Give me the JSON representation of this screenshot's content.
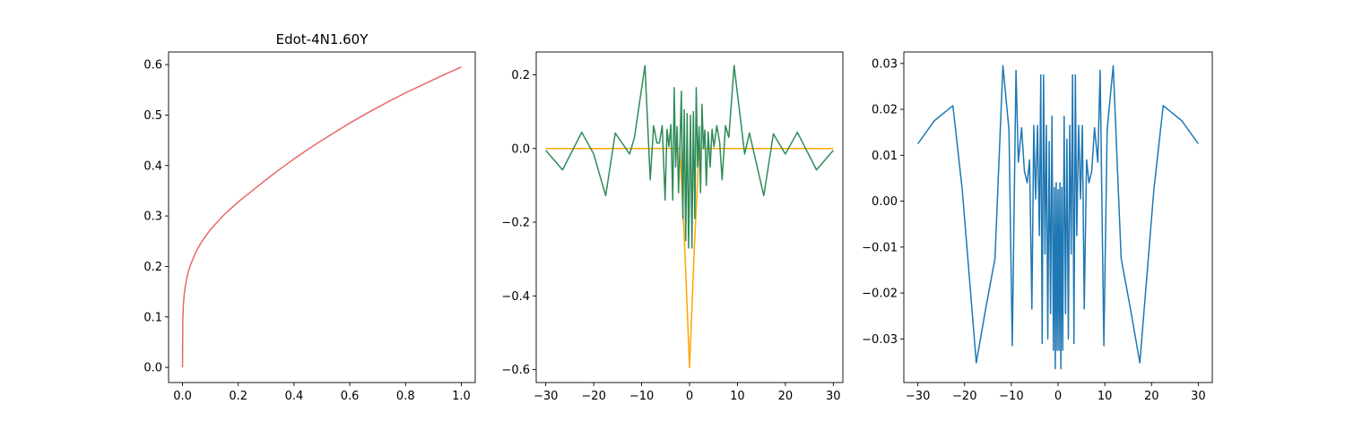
{
  "chart_data": [
    {
      "type": "line",
      "title": "Edot-4N1.60Y",
      "xlim": [
        -0.05,
        1.05
      ],
      "ylim": [
        -0.03,
        0.625
      ],
      "xticks": [
        0.0,
        0.2,
        0.4,
        0.6,
        0.8,
        1.0
      ],
      "xtick_labels": [
        "0.0",
        "0.2",
        "0.4",
        "0.6",
        "0.8",
        "1.0"
      ],
      "yticks": [
        0.0,
        0.1,
        0.2,
        0.3,
        0.4,
        0.5,
        0.6
      ],
      "ytick_labels": [
        "0.0",
        "0.1",
        "0.2",
        "0.3",
        "0.4",
        "0.5",
        "0.6"
      ],
      "grid": false,
      "series": [
        {
          "color": "#e8686a",
          "x": [
            0,
            0.001,
            0.003,
            0.006,
            0.01,
            0.02,
            0.03,
            0.05,
            0.07,
            0.1,
            0.15,
            0.2,
            0.25,
            0.3,
            0.35,
            0.4,
            0.45,
            0.5,
            0.55,
            0.6,
            0.65,
            0.7,
            0.75,
            0.8,
            0.85,
            0.9,
            0.95,
            1.0
          ],
          "y": [
            0,
            0.095,
            0.124,
            0.144,
            0.161,
            0.188,
            0.205,
            0.231,
            0.25,
            0.273,
            0.303,
            0.328,
            0.35,
            0.372,
            0.393,
            0.413,
            0.432,
            0.45,
            0.467,
            0.484,
            0.5,
            0.515,
            0.53,
            0.544,
            0.557,
            0.57,
            0.583,
            0.595
          ]
        }
      ]
    },
    {
      "type": "line",
      "xlim": [
        -32,
        32
      ],
      "ylim": [
        -0.635,
        0.262
      ],
      "xticks": [
        -30,
        -20,
        -10,
        0,
        10,
        20,
        30
      ],
      "xtick_labels": [
        "−30",
        "−20",
        "−10",
        "0",
        "10",
        "20",
        "30"
      ],
      "yticks": [
        0.2,
        0.0,
        -0.2,
        -0.4,
        -0.6
      ],
      "ytick_labels": [
        "0.2",
        "0.0",
        "−0.2",
        "−0.4",
        "−0.6"
      ],
      "grid": false,
      "series": [
        {
          "color": "#ffa500",
          "x": [
            -30,
            -2,
            -1,
            0,
            1,
            2,
            30
          ],
          "y": [
            0,
            0,
            -0.27,
            -0.595,
            -0.27,
            0,
            0
          ]
        },
        {
          "color": "#2e8b57",
          "x": [
            -30,
            -26.5,
            -22.5,
            -20,
            -17.5,
            -15.5,
            -12.5,
            -11.5,
            -9.3,
            -8.2,
            -7.5,
            -6.8,
            -6.3,
            -5.7,
            -5.1,
            -4.7,
            -4.3,
            -3.9,
            -3.5,
            -3.2,
            -2.9,
            -2.6,
            -2.3,
            -2.0,
            -1.7,
            -1.4,
            -1.1,
            -0.8,
            -0.5,
            -0.2,
            0.2,
            0.5,
            0.8,
            1.1,
            1.4,
            1.7,
            2.0,
            2.3,
            2.6,
            2.9,
            3.2,
            3.5,
            3.9,
            4.3,
            4.7,
            5.1,
            5.7,
            6.3,
            6.8,
            7.5,
            8.2,
            9.3,
            11.5,
            12.5,
            15.5,
            17.5,
            20,
            22.5,
            26.5,
            30
          ],
          "y": [
            -0.005,
            -0.058,
            0.044,
            -0.015,
            -0.128,
            0.042,
            -0.015,
            0.03,
            0.225,
            -0.085,
            0.062,
            0.015,
            0.015,
            0.062,
            -0.14,
            0.052,
            0.005,
            0.065,
            -0.14,
            0.165,
            -0.05,
            0.06,
            -0.12,
            0.01,
            0.155,
            -0.19,
            0.105,
            -0.25,
            0.095,
            -0.27,
            0.09,
            -0.27,
            0.1,
            -0.19,
            0.165,
            -0.05,
            0.06,
            -0.12,
            0.12,
            0.0,
            0.05,
            -0.1,
            0.045,
            -0.05,
            0.052,
            0.005,
            0.062,
            0.015,
            -0.085,
            0.062,
            0.03,
            0.225,
            -0.015,
            0.042,
            -0.128,
            0.04,
            -0.015,
            0.044,
            -0.058,
            -0.005
          ]
        }
      ]
    },
    {
      "type": "line",
      "xlim": [
        -33,
        33
      ],
      "ylim": [
        -0.0395,
        0.0325
      ],
      "xticks": [
        -30,
        -20,
        -10,
        0,
        10,
        20,
        30
      ],
      "xtick_labels": [
        "−30",
        "−20",
        "−10",
        "0",
        "10",
        "20",
        "30"
      ],
      "yticks": [
        0.03,
        0.02,
        0.01,
        0.0,
        -0.01,
        -0.02,
        -0.03
      ],
      "ytick_labels": [
        "0.03",
        "0.02",
        "0.01",
        "0.00",
        "−0.01",
        "−0.02",
        "−0.03"
      ],
      "grid": false,
      "series": [
        {
          "color": "#1f77b4",
          "x": [
            -30,
            -26.5,
            -22.5,
            -20.5,
            -17.5,
            -15.5,
            -13.5,
            -11.8,
            -10.5,
            -9.8,
            -9.0,
            -8.5,
            -7.8,
            -7.2,
            -6.6,
            -6.1,
            -5.6,
            -5.2,
            -4.8,
            -4.4,
            -4.0,
            -3.7,
            -3.4,
            -3.1,
            -2.8,
            -2.5,
            -2.2,
            -1.9,
            -1.6,
            -1.3,
            -1.0,
            -0.8,
            -0.6,
            -0.4,
            -0.2,
            0.0,
            0.2,
            0.4,
            0.6,
            0.8,
            1.0,
            1.3,
            1.6,
            1.9,
            2.2,
            2.5,
            2.8,
            3.1,
            3.4,
            3.7,
            4.0,
            4.4,
            4.8,
            5.2,
            5.6,
            6.1,
            6.6,
            7.2,
            7.8,
            8.5,
            9.0,
            9.8,
            10.5,
            11.8,
            13.5,
            15.5,
            17.5,
            20.5,
            22.5,
            26.5,
            30
          ],
          "y": [
            0.0125,
            0.0175,
            0.0208,
            0.0025,
            -0.0352,
            -0.0235,
            -0.0125,
            0.0295,
            0.0155,
            -0.0315,
            0.0285,
            0.0085,
            0.016,
            0.0065,
            0.004,
            0.009,
            -0.0235,
            0.0165,
            0.0005,
            0.0165,
            -0.0075,
            0.0275,
            -0.031,
            0.0275,
            -0.0115,
            0.0165,
            -0.03,
            0.013,
            -0.0245,
            0.0185,
            -0.0325,
            0.003,
            -0.0365,
            0.004,
            -0.0325,
            0.0025,
            -0.0325,
            0.004,
            -0.0365,
            0.003,
            -0.0325,
            0.0185,
            -0.0245,
            0.0135,
            -0.03,
            0.0165,
            -0.0115,
            0.0275,
            -0.031,
            0.0275,
            -0.0075,
            0.0165,
            0.0005,
            0.0165,
            -0.0235,
            0.009,
            0.004,
            0.0065,
            0.016,
            0.0085,
            0.0285,
            -0.0315,
            0.0155,
            0.0295,
            -0.0125,
            -0.0235,
            -0.0352,
            0.0025,
            0.0208,
            0.0175,
            0.0125
          ]
        }
      ]
    }
  ]
}
